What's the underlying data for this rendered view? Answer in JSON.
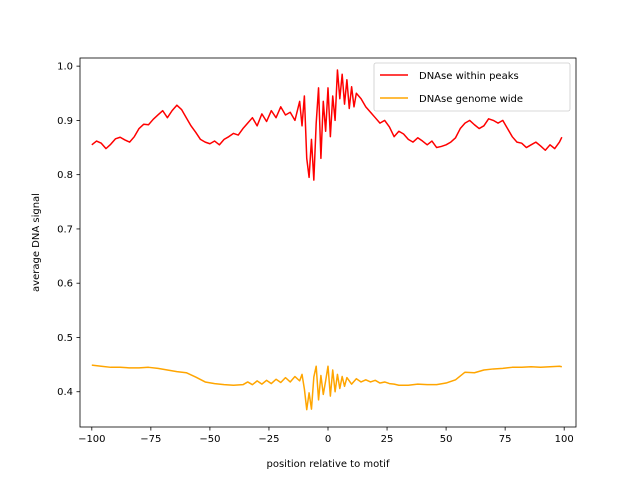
{
  "chart_data": {
    "type": "line",
    "title": "",
    "xlabel": "position relative to motif",
    "ylabel": "average DNA signal",
    "xlim": [
      -105,
      105
    ],
    "ylim": [
      0.335,
      1.015
    ],
    "xticks": [
      -100,
      -75,
      -50,
      -25,
      0,
      25,
      50,
      75,
      100
    ],
    "yticks": [
      0.4,
      0.5,
      0.6,
      0.7,
      0.8,
      0.9,
      1.0
    ],
    "xtick_labels": [
      "−100",
      "−75",
      "−50",
      "−25",
      "0",
      "25",
      "50",
      "75",
      "100"
    ],
    "ytick_labels": [
      "0.4",
      "0.5",
      "0.6",
      "0.7",
      "0.8",
      "0.9",
      "1.0"
    ],
    "grid": false,
    "legend": "top-right",
    "series": [
      {
        "name": "DNAse within peaks",
        "color": "#ff0000",
        "points": [
          [
            -100,
            0.855
          ],
          [
            -98,
            0.862
          ],
          [
            -96,
            0.858
          ],
          [
            -94,
            0.848
          ],
          [
            -92,
            0.856
          ],
          [
            -90,
            0.866
          ],
          [
            -88,
            0.869
          ],
          [
            -86,
            0.864
          ],
          [
            -84,
            0.86
          ],
          [
            -82,
            0.87
          ],
          [
            -80,
            0.885
          ],
          [
            -78,
            0.893
          ],
          [
            -76,
            0.892
          ],
          [
            -74,
            0.902
          ],
          [
            -72,
            0.91
          ],
          [
            -70,
            0.918
          ],
          [
            -68,
            0.905
          ],
          [
            -66,
            0.918
          ],
          [
            -64,
            0.928
          ],
          [
            -62,
            0.92
          ],
          [
            -60,
            0.905
          ],
          [
            -58,
            0.89
          ],
          [
            -56,
            0.878
          ],
          [
            -54,
            0.865
          ],
          [
            -52,
            0.86
          ],
          [
            -50,
            0.857
          ],
          [
            -48,
            0.862
          ],
          [
            -46,
            0.855
          ],
          [
            -44,
            0.865
          ],
          [
            -42,
            0.87
          ],
          [
            -40,
            0.876
          ],
          [
            -38,
            0.873
          ],
          [
            -36,
            0.885
          ],
          [
            -34,
            0.895
          ],
          [
            -32,
            0.905
          ],
          [
            -30,
            0.89
          ],
          [
            -28,
            0.912
          ],
          [
            -26,
            0.898
          ],
          [
            -24,
            0.918
          ],
          [
            -22,
            0.905
          ],
          [
            -20,
            0.925
          ],
          [
            -18,
            0.91
          ],
          [
            -16,
            0.915
          ],
          [
            -14,
            0.9
          ],
          [
            -12,
            0.935
          ],
          [
            -11,
            0.89
          ],
          [
            -10,
            0.945
          ],
          [
            -9,
            0.83
          ],
          [
            -8,
            0.795
          ],
          [
            -7,
            0.865
          ],
          [
            -6,
            0.79
          ],
          [
            -5,
            0.895
          ],
          [
            -4,
            0.96
          ],
          [
            -3,
            0.83
          ],
          [
            -2,
            0.935
          ],
          [
            -1,
            0.88
          ],
          [
            0,
            0.96
          ],
          [
            1,
            0.87
          ],
          [
            2,
            0.945
          ],
          [
            3,
            0.9
          ],
          [
            4,
            0.993
          ],
          [
            5,
            0.94
          ],
          [
            6,
            0.985
          ],
          [
            7,
            0.93
          ],
          [
            8,
            0.975
          ],
          [
            9,
            0.922
          ],
          [
            10,
            0.962
          ],
          [
            11,
            0.925
          ],
          [
            12,
            0.95
          ],
          [
            14,
            0.94
          ],
          [
            16,
            0.925
          ],
          [
            18,
            0.915
          ],
          [
            20,
            0.905
          ],
          [
            22,
            0.895
          ],
          [
            24,
            0.9
          ],
          [
            26,
            0.888
          ],
          [
            28,
            0.87
          ],
          [
            30,
            0.88
          ],
          [
            32,
            0.875
          ],
          [
            34,
            0.865
          ],
          [
            36,
            0.86
          ],
          [
            38,
            0.868
          ],
          [
            40,
            0.862
          ],
          [
            42,
            0.855
          ],
          [
            44,
            0.862
          ],
          [
            46,
            0.85
          ],
          [
            48,
            0.852
          ],
          [
            50,
            0.855
          ],
          [
            52,
            0.86
          ],
          [
            54,
            0.868
          ],
          [
            56,
            0.885
          ],
          [
            58,
            0.895
          ],
          [
            60,
            0.9
          ],
          [
            62,
            0.892
          ],
          [
            64,
            0.885
          ],
          [
            66,
            0.89
          ],
          [
            68,
            0.903
          ],
          [
            70,
            0.9
          ],
          [
            72,
            0.895
          ],
          [
            74,
            0.9
          ],
          [
            76,
            0.885
          ],
          [
            78,
            0.87
          ],
          [
            80,
            0.86
          ],
          [
            82,
            0.858
          ],
          [
            84,
            0.85
          ],
          [
            86,
            0.855
          ],
          [
            88,
            0.86
          ],
          [
            90,
            0.853
          ],
          [
            92,
            0.845
          ],
          [
            94,
            0.855
          ],
          [
            96,
            0.848
          ],
          [
            98,
            0.86
          ],
          [
            99,
            0.869
          ]
        ]
      },
      {
        "name": "DNAse genome wide",
        "color": "#ffa500",
        "points": [
          [
            -100,
            0.449
          ],
          [
            -96,
            0.447
          ],
          [
            -92,
            0.445
          ],
          [
            -88,
            0.445
          ],
          [
            -84,
            0.444
          ],
          [
            -80,
            0.444
          ],
          [
            -76,
            0.445
          ],
          [
            -72,
            0.443
          ],
          [
            -68,
            0.44
          ],
          [
            -64,
            0.437
          ],
          [
            -60,
            0.435
          ],
          [
            -56,
            0.427
          ],
          [
            -52,
            0.418
          ],
          [
            -48,
            0.415
          ],
          [
            -44,
            0.413
          ],
          [
            -40,
            0.412
          ],
          [
            -36,
            0.413
          ],
          [
            -34,
            0.418
          ],
          [
            -32,
            0.413
          ],
          [
            -30,
            0.42
          ],
          [
            -28,
            0.414
          ],
          [
            -26,
            0.421
          ],
          [
            -24,
            0.415
          ],
          [
            -22,
            0.423
          ],
          [
            -20,
            0.417
          ],
          [
            -18,
            0.426
          ],
          [
            -16,
            0.418
          ],
          [
            -14,
            0.428
          ],
          [
            -12,
            0.42
          ],
          [
            -11,
            0.432
          ],
          [
            -10,
            0.405
          ],
          [
            -9,
            0.367
          ],
          [
            -8,
            0.398
          ],
          [
            -7,
            0.368
          ],
          [
            -6,
            0.427
          ],
          [
            -5,
            0.447
          ],
          [
            -4,
            0.385
          ],
          [
            -3,
            0.43
          ],
          [
            -2,
            0.395
          ],
          [
            -1,
            0.42
          ],
          [
            0,
            0.447
          ],
          [
            1,
            0.392
          ],
          [
            2,
            0.44
          ],
          [
            3,
            0.4
          ],
          [
            4,
            0.432
          ],
          [
            5,
            0.406
          ],
          [
            6,
            0.428
          ],
          [
            7,
            0.41
          ],
          [
            8,
            0.426
          ],
          [
            10,
            0.414
          ],
          [
            12,
            0.424
          ],
          [
            14,
            0.418
          ],
          [
            16,
            0.422
          ],
          [
            18,
            0.418
          ],
          [
            20,
            0.421
          ],
          [
            22,
            0.416
          ],
          [
            24,
            0.418
          ],
          [
            26,
            0.415
          ],
          [
            28,
            0.414
          ],
          [
            30,
            0.412
          ],
          [
            34,
            0.412
          ],
          [
            38,
            0.414
          ],
          [
            42,
            0.413
          ],
          [
            46,
            0.413
          ],
          [
            50,
            0.416
          ],
          [
            54,
            0.422
          ],
          [
            58,
            0.436
          ],
          [
            62,
            0.435
          ],
          [
            66,
            0.44
          ],
          [
            70,
            0.442
          ],
          [
            74,
            0.443
          ],
          [
            78,
            0.445
          ],
          [
            82,
            0.445
          ],
          [
            86,
            0.446
          ],
          [
            90,
            0.445
          ],
          [
            94,
            0.446
          ],
          [
            98,
            0.447
          ],
          [
            99,
            0.446
          ]
        ]
      }
    ]
  }
}
